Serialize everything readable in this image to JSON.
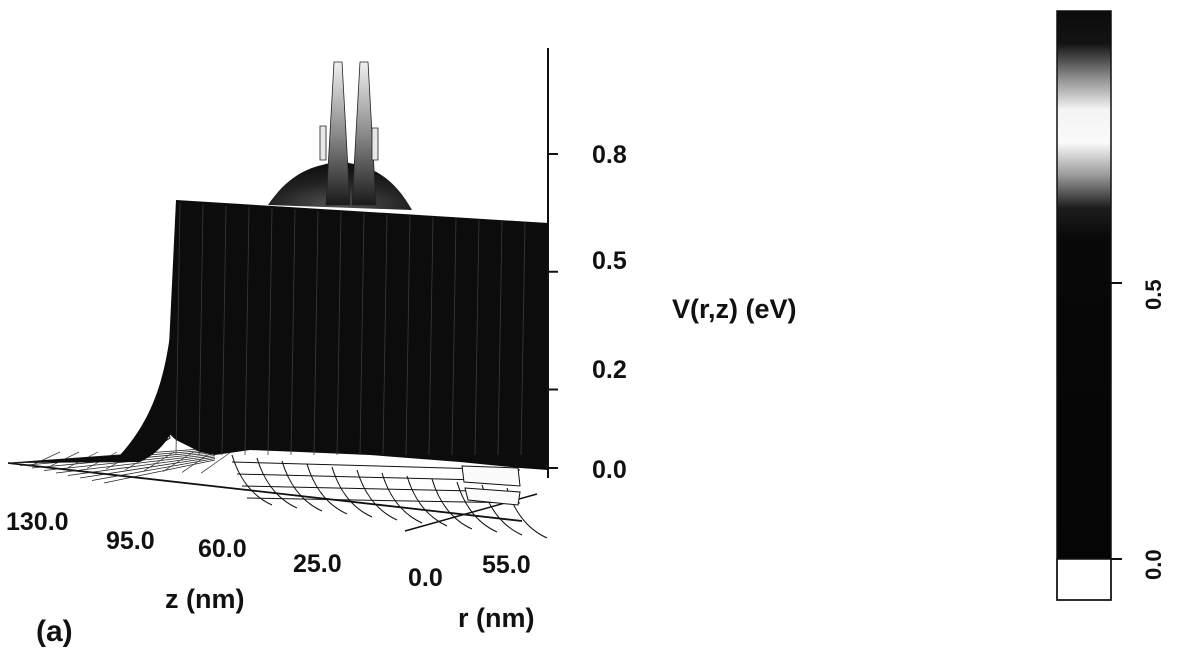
{
  "chart_data": {
    "type": "surface3d",
    "panel_label": "(a)",
    "z_axis": {
      "title": "z (nm)",
      "ticks": [
        "130.0",
        "95.0",
        "60.0",
        "25.0",
        "0.0"
      ],
      "range": [
        0,
        140
      ]
    },
    "r_axis": {
      "title": "r (nm)",
      "ticks": [
        "0.0",
        "55.0"
      ],
      "range": [
        0,
        60
      ]
    },
    "v_axis": {
      "title": "V(r,z) (eV)",
      "ticks": [
        "0.0",
        "0.2",
        "0.5",
        "0.8"
      ],
      "range": [
        0,
        0.9
      ]
    },
    "colorbar": {
      "ticks": [
        "0.0",
        "0.5"
      ],
      "range": [
        0,
        1.0
      ]
    },
    "profile_along_z_at_r0": [
      {
        "z": 140,
        "v": 0.0
      },
      {
        "z": 130,
        "v": 0.02
      },
      {
        "z": 124,
        "v": 0.55
      },
      {
        "z": 110,
        "v": 0.55
      },
      {
        "z": 95,
        "v": 0.55
      },
      {
        "z": 82,
        "v": 0.58
      },
      {
        "z": 75,
        "v": 0.66
      },
      {
        "z": 70,
        "v": 0.9
      },
      {
        "z": 65,
        "v": 0.66
      },
      {
        "z": 60,
        "v": 0.9
      },
      {
        "z": 55,
        "v": 0.66
      },
      {
        "z": 48,
        "v": 0.58
      },
      {
        "z": 40,
        "v": 0.55
      },
      {
        "z": 25,
        "v": 0.55
      },
      {
        "z": 0,
        "v": 0.55
      }
    ]
  }
}
